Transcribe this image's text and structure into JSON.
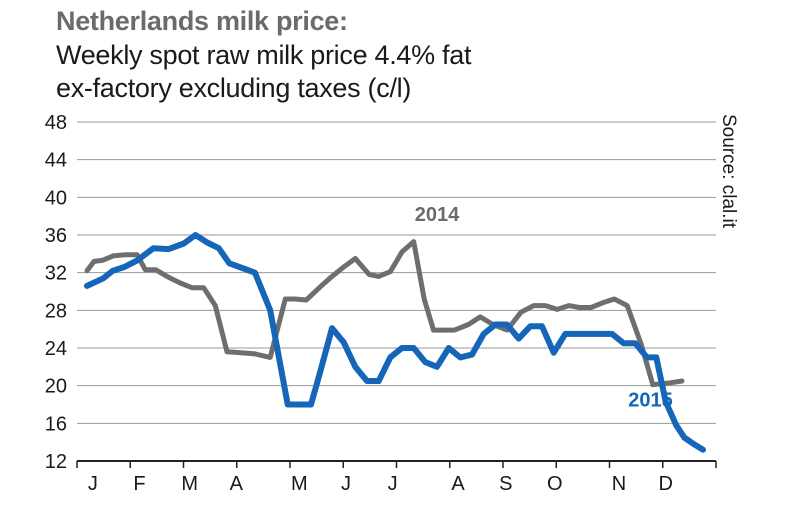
{
  "header": {
    "title": "Netherlands milk price:",
    "subtitle_line1": "Weekly spot raw milk price 4.4% fat",
    "subtitle_line2": "ex-factory excluding taxes (c/l)"
  },
  "source": "Source: clal.it",
  "colors": {
    "s2014": "#6e6e6e",
    "s2015": "#1566b8",
    "grid": "#9a9a9a",
    "axis": "#222222"
  },
  "chart_data": {
    "type": "line",
    "title": "Netherlands milk price: Weekly spot raw milk price 4.4% fat ex-factory excluding taxes (c/l)",
    "xlabel": "",
    "ylabel": "c/l",
    "ylim": [
      12,
      48
    ],
    "yticks": [
      48,
      44,
      40,
      36,
      32,
      28,
      24,
      20,
      16,
      12
    ],
    "xlim": [
      0,
      53
    ],
    "month_labels": [
      "J",
      "F",
      "M",
      "A",
      "M",
      "J",
      "J",
      "A",
      "S",
      "O",
      "N",
      "D"
    ],
    "month_positions": [
      0.5,
      4.5,
      8.8,
      12.8,
      18.2,
      22.2,
      26.2,
      31.8,
      35.9,
      40.1,
      45.6,
      49.6
    ],
    "series": [
      {
        "name": "2014",
        "label_pos": {
          "week": 30.0,
          "value": 37.5
        },
        "x": [
          0,
          0.6,
          1.3,
          2.3,
          3.3,
          4.3,
          5,
          5.9,
          7,
          8,
          9,
          10,
          11,
          12,
          13.2,
          14.3,
          15.7,
          17,
          17.8,
          18.8,
          20,
          21,
          22,
          23,
          24.2,
          25,
          26,
          27,
          28,
          28.9,
          29.7,
          30.7,
          31.5,
          32.7,
          33.7,
          34.8,
          36,
          37.2,
          38.3,
          39.3,
          40.3,
          41.3,
          42.2,
          43.2,
          44.2,
          45.2,
          46.3,
          47.5,
          48.5,
          50,
          51
        ],
        "values": [
          32.2,
          33.2,
          33.3,
          33.8,
          33.9,
          33.9,
          32.3,
          32.3,
          31.5,
          30.9,
          30.4,
          30.4,
          28.5,
          23.6,
          23.5,
          23.4,
          23.0,
          29.2,
          29.2,
          29.1,
          30.5,
          31.6,
          32.6,
          33.5,
          31.8,
          31.6,
          32.1,
          34.2,
          35.3,
          29.2,
          25.9,
          25.9,
          25.9,
          26.5,
          27.3,
          26.5,
          25.9,
          27.8,
          28.5,
          28.5,
          28.1,
          28.5,
          28.3,
          28.3,
          28.8,
          29.2,
          28.5,
          24.4,
          20.1,
          20.3,
          20.5
        ]
      },
      {
        "name": "2015",
        "label_pos": {
          "week": 48.3,
          "value": 17.8
        },
        "x": [
          0,
          1.4,
          2.2,
          3.2,
          4.3,
          5.7,
          7,
          8.3,
          9.3,
          10.3,
          11.3,
          12.2,
          13.3,
          14.4,
          15.7,
          17.2,
          18.3,
          19.2,
          20,
          21,
          22,
          23,
          24,
          25,
          26,
          27,
          28,
          29,
          30,
          31,
          32,
          33,
          34,
          35,
          36,
          37,
          38,
          39,
          40,
          41,
          42,
          43,
          44,
          45,
          46,
          47,
          48,
          48.8,
          49.6,
          50.5,
          51.2,
          52,
          52.8
        ],
        "values": [
          30.6,
          31.4,
          32.2,
          32.6,
          33.3,
          34.6,
          34.5,
          35.1,
          36.0,
          35.2,
          34.6,
          33.0,
          32.5,
          32.0,
          28.0,
          18.0,
          18.0,
          18.0,
          21.5,
          26.1,
          24.6,
          22.0,
          20.5,
          20.5,
          23.0,
          24.0,
          24.0,
          22.5,
          22.0,
          24.0,
          23.0,
          23.3,
          25.5,
          26.5,
          26.5,
          25.0,
          26.3,
          26.3,
          23.5,
          25.5,
          25.5,
          25.5,
          25.5,
          25.5,
          24.5,
          24.5,
          23.0,
          23.0,
          18.3,
          15.8,
          14.5,
          13.8,
          13.2
        ]
      }
    ]
  }
}
